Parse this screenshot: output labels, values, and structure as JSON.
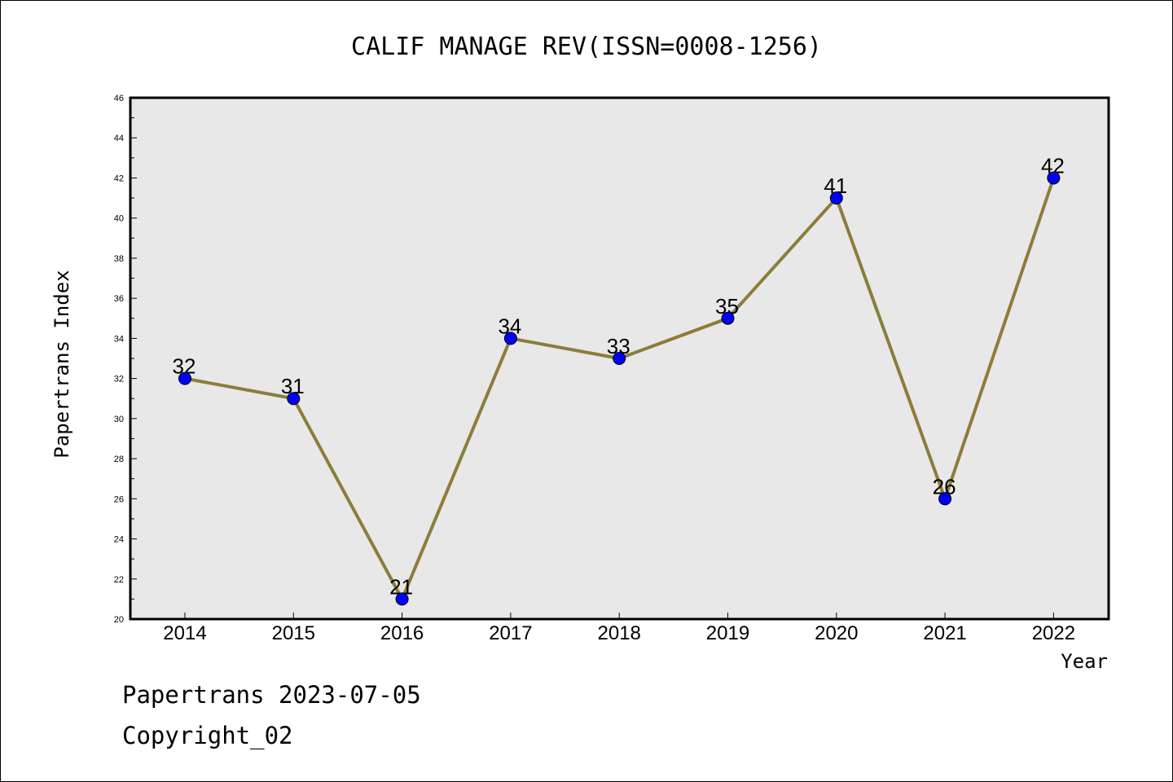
{
  "chart_data": {
    "type": "line",
    "title": "CALIF MANAGE REV(ISSN=0008-1256)",
    "xlabel": "Year",
    "ylabel": "Papertrans Index",
    "categories": [
      "2014",
      "2015",
      "2016",
      "2017",
      "2018",
      "2019",
      "2020",
      "2021",
      "2022"
    ],
    "series": [
      {
        "values": [
          32,
          31,
          21,
          34,
          33,
          35,
          41,
          26,
          42
        ]
      }
    ],
    "ylim": [
      20,
      46
    ],
    "yticks": [
      "20",
      "22",
      "24",
      "26",
      "28",
      "30",
      "32",
      "34",
      "36",
      "38",
      "40",
      "42",
      "44",
      "46"
    ],
    "grid": false,
    "data_labels": true,
    "colors": {
      "line": "#8B7D3A",
      "marker": "#0000FF",
      "plot_background": "#E8E8E8"
    }
  },
  "footer": {
    "line1": "Papertrans 2023-07-05",
    "line2": "Copyright_02"
  }
}
